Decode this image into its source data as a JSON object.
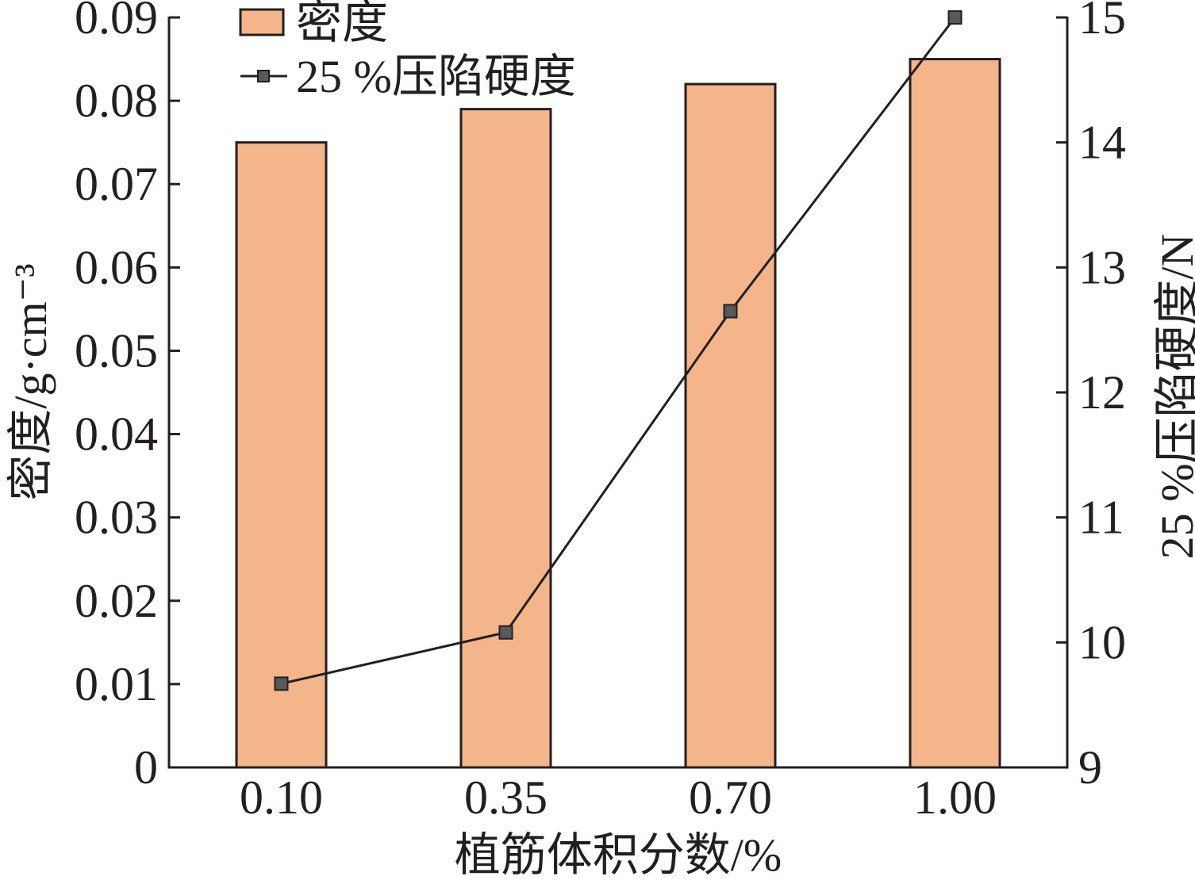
{
  "chart_data": {
    "type": "bar",
    "categories": [
      "0.10",
      "0.35",
      "0.70",
      "1.00"
    ],
    "series": [
      {
        "name": "密度",
        "type": "bar",
        "axis": "left",
        "values": [
          0.075,
          0.079,
          0.082,
          0.085
        ]
      },
      {
        "name": "25 %压陷硬度",
        "type": "line",
        "axis": "right",
        "values": [
          9.67,
          10.08,
          12.65,
          15.0
        ]
      }
    ],
    "xlabel": "植筋体积分数/%",
    "ylabel": "密度/g·cm⁻³",
    "y2label": "25 %压陷硬度/N",
    "ylim": [
      0,
      0.09
    ],
    "y2lim": [
      9,
      15
    ],
    "yticks": [
      "0",
      "0.01",
      "0.02",
      "0.03",
      "0.04",
      "0.05",
      "0.06",
      "0.07",
      "0.08",
      "0.09"
    ],
    "y2ticks": [
      "9",
      "10",
      "11",
      "12",
      "13",
      "14",
      "15"
    ],
    "grid": false,
    "legend": "top-left",
    "colors": {
      "bar_fill": "#F4B58A",
      "outline": "#231F20",
      "line": "#231F20",
      "marker_fill": "#58595B"
    }
  }
}
